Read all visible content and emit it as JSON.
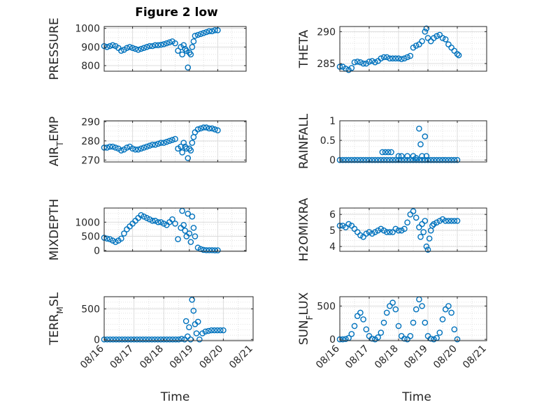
{
  "figure": {
    "title": "Figure 2 low",
    "xlabel": "Time"
  },
  "chart_data": [
    {
      "type": "scatter",
      "ylabel": "PRESSURE",
      "ylim": [
        770,
        1010
      ],
      "yticks": [
        "800",
        "900",
        "1000"
      ],
      "ytick_values": [
        800,
        900,
        1000
      ],
      "xlim": [
        0,
        5
      ],
      "xtick_labels": [],
      "grid": true,
      "series": [
        {
          "color": "#0072BD",
          "x": [
            0.0,
            0.1,
            0.2,
            0.3,
            0.4,
            0.5,
            0.6,
            0.7,
            0.8,
            0.9,
            1.0,
            1.1,
            1.2,
            1.3,
            1.4,
            1.5,
            1.6,
            1.7,
            1.8,
            1.9,
            2.0,
            2.1,
            2.2,
            2.3,
            2.4,
            2.5,
            2.6,
            2.7,
            2.75,
            2.8,
            2.85,
            2.9,
            2.95,
            3.0,
            3.05,
            3.1,
            3.15,
            3.2,
            3.3,
            3.4,
            3.5,
            3.6,
            3.7,
            3.8,
            3.9,
            4.0
          ],
          "y": [
            905,
            900,
            905,
            910,
            905,
            895,
            880,
            885,
            895,
            900,
            895,
            890,
            885,
            890,
            895,
            900,
            905,
            905,
            910,
            910,
            912,
            915,
            920,
            925,
            930,
            920,
            880,
            900,
            860,
            910,
            890,
            880,
            790,
            870,
            860,
            900,
            930,
            960,
            965,
            970,
            975,
            980,
            985,
            985,
            990,
            990
          ]
        }
      ]
    },
    {
      "type": "scatter",
      "ylabel": "THETA",
      "ylim": [
        283.8,
        290.8
      ],
      "yticks": [
        "285",
        "290"
      ],
      "ytick_values": [
        285,
        290
      ],
      "xlim": [
        0,
        5
      ],
      "xtick_labels": [],
      "grid": true,
      "series": [
        {
          "color": "#0072BD",
          "x": [
            0.0,
            0.1,
            0.2,
            0.3,
            0.4,
            0.5,
            0.6,
            0.7,
            0.8,
            0.9,
            1.0,
            1.1,
            1.2,
            1.3,
            1.4,
            1.5,
            1.6,
            1.7,
            1.8,
            1.9,
            2.0,
            2.1,
            2.2,
            2.3,
            2.4,
            2.5,
            2.6,
            2.7,
            2.8,
            2.9,
            2.95,
            3.0,
            3.1,
            3.2,
            3.3,
            3.4,
            3.5,
            3.6,
            3.7,
            3.8,
            3.9,
            4.0,
            4.05
          ],
          "y": [
            284.5,
            284.5,
            284.2,
            284.0,
            284.3,
            285.2,
            285.3,
            285.2,
            285.0,
            285.0,
            285.3,
            285.4,
            285.2,
            285.4,
            285.8,
            286.0,
            286.0,
            285.8,
            285.8,
            285.8,
            285.8,
            285.7,
            285.8,
            286.0,
            286.2,
            287.5,
            287.8,
            288.0,
            288.5,
            290.0,
            290.5,
            289.0,
            288.5,
            289.0,
            289.3,
            289.5,
            289.0,
            288.8,
            288.0,
            287.5,
            287.0,
            286.5,
            286.3
          ]
        }
      ]
    },
    {
      "type": "scatter",
      "ylabel": "AIR_TEMP",
      "ylim": [
        269,
        290.5
      ],
      "yticks": [
        "270",
        "280",
        "290"
      ],
      "ytick_values": [
        270,
        280,
        290
      ],
      "xlim": [
        0,
        5
      ],
      "xtick_labels": [],
      "grid": true,
      "series": [
        {
          "color": "#0072BD",
          "x": [
            0.0,
            0.1,
            0.2,
            0.3,
            0.4,
            0.5,
            0.6,
            0.7,
            0.8,
            0.9,
            1.0,
            1.1,
            1.2,
            1.3,
            1.4,
            1.5,
            1.6,
            1.7,
            1.8,
            1.9,
            2.0,
            2.1,
            2.2,
            2.3,
            2.4,
            2.5,
            2.6,
            2.7,
            2.75,
            2.8,
            2.85,
            2.9,
            2.95,
            3.0,
            3.05,
            3.1,
            3.15,
            3.2,
            3.3,
            3.4,
            3.5,
            3.6,
            3.7,
            3.8,
            3.9,
            4.0
          ],
          "y": [
            276.5,
            276.5,
            277,
            277,
            276.5,
            276,
            275,
            275.5,
            276.5,
            277,
            276,
            275.5,
            275.5,
            276,
            276.5,
            277,
            277.5,
            278,
            278,
            278.5,
            279,
            279,
            279.5,
            280,
            280.5,
            281,
            276,
            277,
            274,
            279,
            277,
            276,
            271,
            276,
            275,
            279,
            282,
            284.5,
            286,
            286.5,
            287,
            287,
            286.5,
            286.5,
            286,
            285.5
          ]
        }
      ]
    },
    {
      "type": "scatter",
      "ylabel": "RAINFALL",
      "ylim": [
        -0.05,
        1.0
      ],
      "yticks": [
        "0",
        "0.5",
        "1"
      ],
      "ytick_values": [
        0,
        0.5,
        1
      ],
      "xlim": [
        0,
        5
      ],
      "xtick_labels": [],
      "grid": true,
      "series": [
        {
          "color": "#0072BD",
          "x": [
            0.0,
            0.1,
            0.2,
            0.3,
            0.4,
            0.5,
            0.6,
            0.7,
            0.8,
            0.9,
            1.0,
            1.1,
            1.2,
            1.3,
            1.4,
            1.5,
            1.6,
            1.7,
            1.8,
            1.9,
            2.0,
            2.1,
            2.2,
            2.3,
            2.4,
            2.5,
            2.6,
            2.7,
            2.8,
            2.9,
            3.0,
            3.1,
            3.2,
            3.3,
            3.4,
            3.5,
            3.6,
            3.7,
            3.8,
            3.9,
            4.0,
            1.45,
            1.55,
            1.65,
            1.75,
            2.0,
            2.1,
            2.3,
            2.5,
            2.6,
            2.7,
            2.75,
            2.8,
            2.9,
            2.95
          ],
          "y": [
            0,
            0,
            0,
            0,
            0,
            0,
            0,
            0,
            0,
            0,
            0,
            0,
            0,
            0,
            0,
            0,
            0,
            0,
            0,
            0,
            0,
            0,
            0,
            0,
            0,
            0,
            0,
            0,
            0,
            0,
            0,
            0,
            0,
            0,
            0,
            0,
            0,
            0,
            0,
            0,
            0,
            0.2,
            0.2,
            0.2,
            0.2,
            0.1,
            0.1,
            0.1,
            0.1,
            0.05,
            0.8,
            0.4,
            0.1,
            0.6,
            0.1
          ]
        }
      ]
    },
    {
      "type": "scatter",
      "ylabel": "MIXDEPTH",
      "ylim": [
        -30,
        1500
      ],
      "yticks": [
        "0",
        "500",
        "1000"
      ],
      "ytick_values": [
        0,
        500,
        1000
      ],
      "xlim": [
        0,
        5
      ],
      "xtick_labels": [],
      "grid": true,
      "series": [
        {
          "color": "#0072BD",
          "x": [
            0.0,
            0.1,
            0.2,
            0.3,
            0.4,
            0.5,
            0.6,
            0.7,
            0.8,
            0.9,
            1.0,
            1.1,
            1.2,
            1.3,
            1.4,
            1.5,
            1.6,
            1.7,
            1.8,
            1.9,
            2.0,
            2.1,
            2.2,
            2.3,
            2.4,
            2.5,
            2.6,
            2.7,
            2.75,
            2.8,
            2.85,
            2.9,
            2.95,
            3.0,
            3.05,
            3.1,
            3.15,
            3.2,
            3.3,
            3.4,
            3.5,
            3.6,
            3.7,
            3.8,
            3.9,
            4.0
          ],
          "y": [
            450,
            420,
            400,
            350,
            300,
            350,
            420,
            600,
            750,
            850,
            950,
            1050,
            1150,
            1250,
            1200,
            1150,
            1100,
            1050,
            1050,
            1000,
            1000,
            950,
            900,
            1000,
            1100,
            950,
            400,
            800,
            1400,
            900,
            700,
            500,
            1300,
            600,
            300,
            1200,
            800,
            500,
            100,
            50,
            20,
            10,
            10,
            10,
            5,
            5
          ]
        }
      ]
    },
    {
      "type": "scatter",
      "ylabel": "H2OMIXRA",
      "ylim": [
        3.7,
        6.4
      ],
      "yticks": [
        "4",
        "5",
        "6"
      ],
      "ytick_values": [
        4,
        5,
        6
      ],
      "xlim": [
        0,
        5
      ],
      "xtick_labels": [],
      "grid": true,
      "series": [
        {
          "color": "#0072BD",
          "x": [
            0.0,
            0.1,
            0.2,
            0.3,
            0.4,
            0.5,
            0.6,
            0.7,
            0.8,
            0.9,
            1.0,
            1.1,
            1.2,
            1.3,
            1.4,
            1.5,
            1.6,
            1.7,
            1.8,
            1.9,
            2.0,
            2.1,
            2.2,
            2.3,
            2.4,
            2.5,
            2.6,
            2.7,
            2.75,
            2.8,
            2.85,
            2.9,
            2.95,
            3.0,
            3.05,
            3.1,
            3.15,
            3.2,
            3.3,
            3.4,
            3.5,
            3.6,
            3.7,
            3.8,
            3.9,
            4.0
          ],
          "y": [
            5.3,
            5.3,
            5.2,
            5.4,
            5.3,
            5.1,
            4.9,
            4.7,
            4.6,
            4.8,
            4.9,
            4.8,
            4.9,
            5.0,
            5.1,
            5.0,
            4.9,
            4.9,
            4.9,
            5.1,
            5.0,
            5.0,
            5.1,
            5.5,
            6.0,
            6.2,
            5.8,
            5.2,
            4.6,
            5.4,
            4.9,
            5.6,
            4.0,
            3.8,
            4.5,
            5.0,
            5.3,
            5.4,
            5.5,
            5.6,
            5.7,
            5.6,
            5.6,
            5.6,
            5.6,
            5.6
          ]
        }
      ]
    },
    {
      "type": "scatter",
      "ylabel": "TERR_MSL",
      "ylim": [
        -20,
        700
      ],
      "yticks": [
        "0",
        "500"
      ],
      "ytick_values": [
        0,
        500
      ],
      "xlim": [
        0,
        5
      ],
      "xtick_labels": [
        "08/16",
        "08/17",
        "08/18",
        "08/19",
        "08/20",
        "08/21"
      ],
      "grid": true,
      "series": [
        {
          "color": "#0072BD",
          "x": [
            0.0,
            0.1,
            0.2,
            0.3,
            0.4,
            0.5,
            0.6,
            0.7,
            0.8,
            0.9,
            1.0,
            1.1,
            1.2,
            1.3,
            1.4,
            1.5,
            1.6,
            1.7,
            1.8,
            1.9,
            2.0,
            2.1,
            2.2,
            2.3,
            2.4,
            2.5,
            2.6,
            2.7,
            2.75,
            2.8,
            2.85,
            2.9,
            2.95,
            3.0,
            3.05,
            3.1,
            3.15,
            3.2,
            3.3,
            3.4,
            3.5,
            3.6,
            3.7,
            3.8,
            3.9,
            4.0
          ],
          "y": [
            0,
            0,
            0,
            0,
            0,
            0,
            0,
            0,
            0,
            0,
            0,
            0,
            0,
            0,
            0,
            0,
            0,
            0,
            0,
            0,
            0,
            0,
            0,
            0,
            0,
            0,
            10,
            0,
            300,
            50,
            200,
            0,
            650,
            470,
            250,
            100,
            290,
            0,
            100,
            130,
            140,
            150,
            150,
            150,
            150,
            150
          ]
        }
      ]
    },
    {
      "type": "scatter",
      "ylabel": "SUN_FLUX",
      "ylim": [
        -20,
        640
      ],
      "yticks": [
        "0",
        "500"
      ],
      "ytick_values": [
        0,
        500
      ],
      "xlim": [
        0,
        5
      ],
      "xtick_labels": [
        "08/16",
        "08/17",
        "08/18",
        "08/19",
        "08/20",
        "08/21"
      ],
      "grid": true,
      "series": [
        {
          "color": "#0072BD",
          "x": [
            0.0,
            0.1,
            0.2,
            0.3,
            0.4,
            0.5,
            0.6,
            0.7,
            0.8,
            0.9,
            1.0,
            1.1,
            1.2,
            1.3,
            1.4,
            1.5,
            1.6,
            1.7,
            1.8,
            1.9,
            2.0,
            2.1,
            2.2,
            2.3,
            2.4,
            2.5,
            2.6,
            2.7,
            2.8,
            2.9,
            3.0,
            3.1,
            3.2,
            3.3,
            3.4,
            3.5,
            3.6,
            3.7,
            3.8,
            3.9,
            4.0
          ],
          "y": [
            0,
            0,
            5,
            20,
            80,
            200,
            350,
            400,
            300,
            150,
            50,
            10,
            0,
            30,
            100,
            250,
            400,
            500,
            550,
            450,
            200,
            50,
            10,
            0,
            50,
            250,
            450,
            600,
            500,
            250,
            50,
            10,
            0,
            20,
            100,
            300,
            450,
            500,
            400,
            150,
            0
          ]
        }
      ]
    }
  ]
}
